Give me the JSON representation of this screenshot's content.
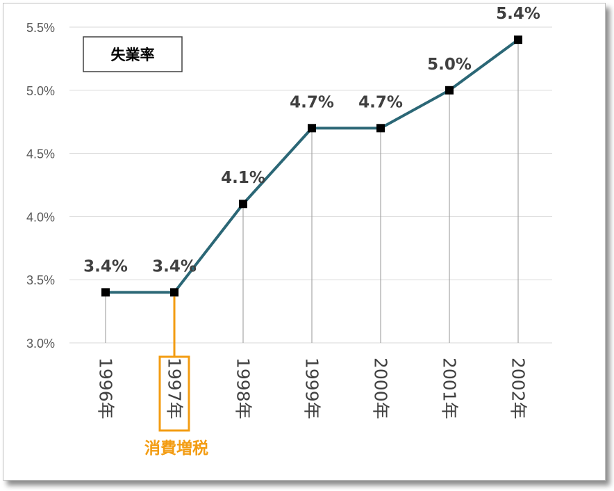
{
  "chart_data": {
    "type": "line",
    "title": "",
    "xlabel": "",
    "ylabel": "",
    "categories": [
      "1996年",
      "1997年",
      "1998年",
      "1999年",
      "2000年",
      "2001年",
      "2002年"
    ],
    "series": [
      {
        "name": "失業率",
        "values": [
          3.4,
          3.4,
          4.1,
          4.7,
          4.7,
          5.0,
          5.4
        ],
        "labels": [
          "3.4%",
          "3.4%",
          "4.1%",
          "4.7%",
          "4.7%",
          "5.0%",
          "5.4%"
        ],
        "color": "#2b6776"
      }
    ],
    "ylim": [
      3.0,
      5.5
    ],
    "yticks": [
      "3.0%",
      "3.5%",
      "4.0%",
      "4.5%",
      "5.0%",
      "5.5%"
    ],
    "ytick_values": [
      3.0,
      3.5,
      4.0,
      4.5,
      5.0,
      5.5
    ],
    "grid": true,
    "legend": "top-left",
    "annotation": {
      "text": "消費増税",
      "category": "1997年",
      "color": "#f39c12"
    }
  }
}
